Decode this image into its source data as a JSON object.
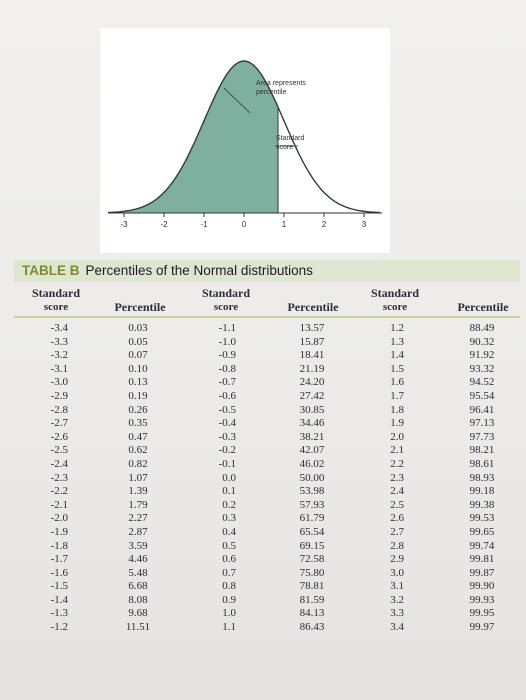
{
  "figure": {
    "annotation_area": [
      "Area represents",
      "percentile"
    ],
    "annotation_score": [
      "Standard",
      "score"
    ],
    "axis_ticks": [
      "-3",
      "-2",
      "-1",
      "0",
      "1",
      "2",
      "3"
    ],
    "colors": {
      "fill": "#7faf9f",
      "curve": "#2f3d34"
    }
  },
  "table": {
    "label": "TABLE B",
    "title": "Percentiles of the Normal distributions",
    "headers": {
      "standard_score": [
        "Standard",
        "score"
      ],
      "percentile": "Percentile"
    },
    "columns": [
      {
        "z": [
          "-3.4",
          "-3.3",
          "-3.2",
          "-3.1",
          "-3.0",
          "-2.9",
          "-2.8",
          "-2.7",
          "-2.6",
          "-2.5",
          "-2.4",
          "-2.3",
          "-2.2",
          "-2.1",
          "-2.0",
          "-1.9",
          "-1.8",
          "-1.7",
          "-1.6",
          "-1.5",
          "-1.4",
          "-1.3",
          "-1.2"
        ],
        "p": [
          "0.03",
          "0.05",
          "0.07",
          "0.10",
          "0.13",
          "0.19",
          "0.26",
          "0.35",
          "0.47",
          "0.62",
          "0.82",
          "1.07",
          "1.39",
          "1.79",
          "2.27",
          "2.87",
          "3.59",
          "4.46",
          "5.48",
          "6.68",
          "8.08",
          "9.68",
          "11.51"
        ]
      },
      {
        "z": [
          "-1.1",
          "-1.0",
          "-0.9",
          "-0.8",
          "-0.7",
          "-0.6",
          "-0.5",
          "-0.4",
          "-0.3",
          "-0.2",
          "-0.1",
          "0.0",
          "0.1",
          "0.2",
          "0.3",
          "0.4",
          "0.5",
          "0.6",
          "0.7",
          "0.8",
          "0.9",
          "1.0",
          "1.1"
        ],
        "p": [
          "13.57",
          "15.87",
          "18.41",
          "21.19",
          "24.20",
          "27.42",
          "30.85",
          "34.46",
          "38.21",
          "42.07",
          "46.02",
          "50.00",
          "53.98",
          "57.93",
          "61.79",
          "65.54",
          "69.15",
          "72.58",
          "75.80",
          "78.81",
          "81.59",
          "84.13",
          "86.43"
        ]
      },
      {
        "z": [
          "1.2",
          "1.3",
          "1.4",
          "1.5",
          "1.6",
          "1.7",
          "1.8",
          "1.9",
          "2.0",
          "2.1",
          "2.2",
          "2.3",
          "2.4",
          "2.5",
          "2.6",
          "2.7",
          "2.8",
          "2.9",
          "3.0",
          "3.1",
          "3.2",
          "3.3",
          "3.4"
        ],
        "p": [
          "88.49",
          "90.32",
          "91.92",
          "93.32",
          "94.52",
          "95.54",
          "96.41",
          "97.13",
          "97.73",
          "98.21",
          "98.61",
          "98.93",
          "99.18",
          "99.38",
          "99.53",
          "99.65",
          "99.74",
          "99.81",
          "99.87",
          "99.90",
          "99.93",
          "99.95",
          "99.97"
        ]
      }
    ]
  }
}
